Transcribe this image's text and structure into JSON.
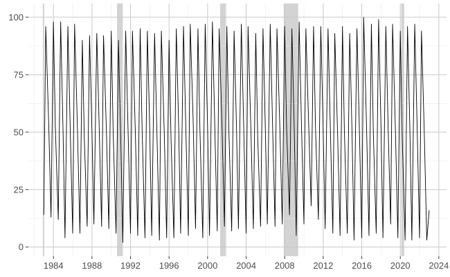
{
  "chart_data": {
    "type": "line",
    "title": "",
    "xlabel": "",
    "ylabel": "",
    "xlim": [
      1981.4,
      2024.8
    ],
    "ylim": [
      -4,
      106
    ],
    "grid": true,
    "x_ticks": [
      1984,
      1988,
      1992,
      1996,
      2000,
      2004,
      2008,
      2012,
      2016,
      2020,
      2024
    ],
    "y_ticks": [
      0,
      25,
      50,
      75,
      100
    ],
    "recession_bands": [
      {
        "start": 1982.9,
        "end": 1983.0
      },
      {
        "start": 1990.6,
        "end": 1991.2
      },
      {
        "start": 2001.3,
        "end": 2001.9
      },
      {
        "start": 2007.9,
        "end": 2009.4
      },
      {
        "start": 2020.1,
        "end": 2020.4
      }
    ],
    "series": [
      {
        "x": [
          1983.0,
          1983.2,
          1983.5,
          1983.75,
          1984.0,
          1984.2,
          1984.5,
          1984.75,
          1985.0,
          1985.2,
          1985.5,
          1985.75,
          1986.0,
          1986.2,
          1986.5,
          1986.75,
          1987.0,
          1987.2,
          1987.5,
          1987.75,
          1988.0,
          1988.2,
          1988.5,
          1988.75,
          1989.0,
          1989.2,
          1989.5,
          1989.75,
          1990.0,
          1990.2,
          1990.5,
          1990.75,
          1991.0,
          1991.2,
          1991.5,
          1991.75,
          1992.0,
          1992.2,
          1992.5,
          1992.75,
          1993.0,
          1993.2,
          1993.5,
          1993.75,
          1994.0,
          1994.2,
          1994.5,
          1994.75,
          1995.0,
          1995.2,
          1995.5,
          1995.75,
          1996.0,
          1996.2,
          1996.5,
          1996.75,
          1997.0,
          1997.2,
          1997.5,
          1997.75,
          1998.0,
          1998.2,
          1998.5,
          1998.75,
          1999.0,
          1999.2,
          1999.5,
          1999.75,
          2000.0,
          2000.2,
          2000.5,
          2000.75,
          2001.0,
          2001.2,
          2001.5,
          2001.75,
          2002.0,
          2002.2,
          2002.5,
          2002.75,
          2003.0,
          2003.2,
          2003.5,
          2003.75,
          2004.0,
          2004.2,
          2004.5,
          2004.75,
          2005.0,
          2005.2,
          2005.5,
          2005.75,
          2006.0,
          2006.2,
          2006.5,
          2006.75,
          2007.0,
          2007.2,
          2007.5,
          2007.75,
          2008.0,
          2008.2,
          2008.5,
          2008.75,
          2009.0,
          2009.2,
          2009.5,
          2009.75,
          2010.0,
          2010.2,
          2010.5,
          2010.75,
          2011.0,
          2011.2,
          2011.5,
          2011.75,
          2012.0,
          2012.2,
          2012.5,
          2012.75,
          2013.0,
          2013.2,
          2013.5,
          2013.75,
          2014.0,
          2014.2,
          2014.5,
          2014.75,
          2015.0,
          2015.2,
          2015.5,
          2015.75,
          2016.0,
          2016.2,
          2016.5,
          2016.75,
          2017.0,
          2017.2,
          2017.5,
          2017.75,
          2018.0,
          2018.2,
          2018.5,
          2018.75,
          2019.0,
          2019.2,
          2019.5,
          2019.75,
          2020.0,
          2020.2,
          2020.5,
          2020.75,
          2021.0,
          2021.2,
          2021.5,
          2021.75,
          2022.0,
          2022.2,
          2022.5,
          2022.75,
          2023.0
        ],
        "y": [
          14,
          96,
          55,
          13,
          98,
          52,
          12,
          98,
          50,
          4,
          96,
          50,
          6,
          97,
          50,
          6,
          90,
          48,
          9,
          92,
          50,
          10,
          93,
          52,
          9,
          92,
          50,
          8,
          94,
          50,
          6,
          90,
          45,
          2,
          94,
          50,
          6,
          94,
          50,
          5,
          95,
          52,
          4,
          94,
          50,
          5,
          93,
          48,
          3,
          94,
          50,
          4,
          90,
          48,
          4,
          95,
          52,
          6,
          96,
          50,
          5,
          97,
          55,
          8,
          95,
          52,
          4,
          97,
          52,
          5,
          98,
          52,
          7,
          95,
          52,
          9,
          96,
          52,
          7,
          94,
          52,
          8,
          97,
          52,
          6,
          96,
          50,
          8,
          93,
          48,
          9,
          95,
          50,
          10,
          97,
          52,
          9,
          95,
          52,
          10,
          96,
          52,
          14,
          95,
          50,
          5,
          98,
          52,
          10,
          95,
          52,
          18,
          96,
          52,
          12,
          96,
          50,
          8,
          95,
          50,
          6,
          93,
          48,
          5,
          96,
          50,
          6,
          93,
          48,
          3,
          95,
          52,
          4,
          100,
          52,
          5,
          97,
          50,
          6,
          99,
          52,
          4,
          96,
          50,
          10,
          97,
          50,
          4,
          94,
          48,
          3,
          96,
          50,
          3,
          97,
          52,
          4,
          94,
          48,
          3,
          16
        ]
      }
    ]
  }
}
